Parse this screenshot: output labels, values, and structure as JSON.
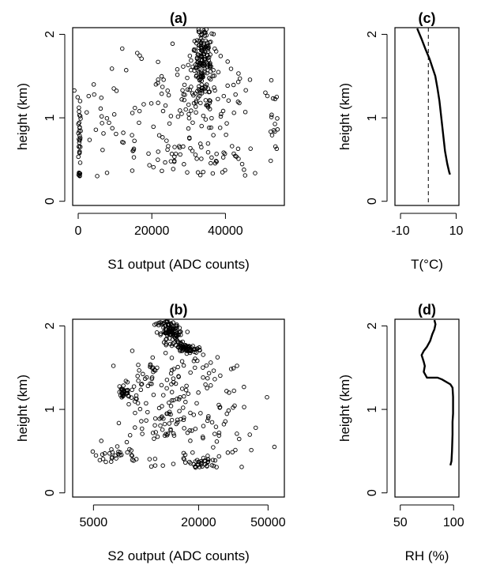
{
  "chart_data": [
    {
      "id": "a",
      "type": "scatter",
      "title": "(a)",
      "xlabel": "S1 output (ADC counts)",
      "ylabel": "height (km)",
      "xscale": "linear",
      "xlim": [
        -1500,
        56000
      ],
      "ylim": [
        -0.05,
        2.08
      ],
      "xticks": [
        0,
        20000,
        40000
      ],
      "xtick_labels": [
        "0",
        "20000",
        "40000"
      ],
      "yticks": [
        0,
        1,
        2
      ],
      "ytick_labels": [
        "0",
        "1",
        "2"
      ],
      "series": [
        {
          "marker": "open-circle",
          "clusters": [
            {
              "x": [
                34000,
                1500
              ],
              "y": [
                1.75,
                0.3
              ],
              "n": 200
            },
            {
              "x": [
                31000,
                9000
              ],
              "y": [
                1.25,
                0.28
              ],
              "n": 110
            },
            {
              "x": [
                30000,
                9000
              ],
              "y": [
                0.55,
                0.15
              ],
              "n": 70
            },
            {
              "x": [
                300,
                180
              ],
              "y": [
                0.75,
                0.3
              ],
              "n": 35
            },
            {
              "x": [
                6000,
                3500
              ],
              "y": [
                0.95,
                0.3
              ],
              "n": 25
            },
            {
              "x": [
                53500,
                600
              ],
              "y": [
                1.0,
                0.35
              ],
              "n": 14
            }
          ]
        }
      ]
    },
    {
      "id": "b",
      "type": "scatter",
      "title": "(b)",
      "xlabel": "S2 output (ADC counts)",
      "ylabel": "height (km)",
      "xscale": "log",
      "xlim": [
        3800,
        62000
      ],
      "ylim": [
        -0.05,
        2.08
      ],
      "xticks": [
        5000,
        20000,
        50000
      ],
      "xtick_labels": [
        "5000",
        "20000",
        "50000"
      ],
      "yticks": [
        0,
        1,
        2
      ],
      "ytick_labels": [
        "0",
        "1",
        "2"
      ],
      "series": [
        {
          "marker": "open-circle",
          "clusters": [
            {
              "trail": [
                [
                  13000,
                  2.07
                ],
                [
                  13500,
                  1.95
                ],
                [
                  14000,
                  1.9
                ],
                [
                  15000,
                  1.8
                ],
                [
                  17000,
                  1.72
                ],
                [
                  19000,
                  1.7
                ]
              ],
              "n": 170,
              "spread": [
                0.03,
                0.02
              ]
            },
            {
              "x": [
                15000,
                0.45
              ],
              "y": [
                1.35,
                0.18
              ],
              "n": 90
            },
            {
              "x": [
                14000,
                0.5
              ],
              "y": [
                0.75,
                0.2
              ],
              "n": 120
            },
            {
              "x": [
                21000,
                0.1
              ],
              "y": [
                0.35,
                0.05
              ],
              "n": 35
            },
            {
              "x": [
                7500,
                0.05
              ],
              "y": [
                1.2,
                0.03
              ],
              "n": 30
            },
            {
              "x": [
                6700,
                0.15
              ],
              "y": [
                0.45,
                0.04
              ],
              "n": 25
            }
          ]
        }
      ]
    },
    {
      "id": "c",
      "type": "line",
      "title": "(c)",
      "xlabel": "T(°C)",
      "ylabel": "height (km)",
      "xlim": [
        -12,
        11
      ],
      "ylim": [
        -0.05,
        2.08
      ],
      "xticks": [
        -10,
        10
      ],
      "xtick_labels": [
        "-10",
        "10"
      ],
      "yticks": [
        0,
        1,
        2
      ],
      "ytick_labels": [
        "0",
        "1",
        "2"
      ],
      "reference_line_x": 0,
      "x": [
        7.8,
        7.5,
        6.8,
        6.0,
        5.5,
        5.0,
        4.5,
        4.0,
        3.3,
        2.5,
        1.5,
        0.5,
        -1.0,
        -2.5,
        -4.0
      ],
      "y": [
        0.32,
        0.35,
        0.45,
        0.6,
        0.75,
        0.9,
        1.05,
        1.2,
        1.35,
        1.5,
        1.6,
        1.7,
        1.82,
        1.95,
        2.07
      ]
    },
    {
      "id": "d",
      "type": "line",
      "title": "(d)",
      "xlabel": "RH (%)",
      "ylabel": "height (km)",
      "xlim": [
        45,
        105
      ],
      "ylim": [
        -0.05,
        2.08
      ],
      "xticks": [
        50,
        100
      ],
      "xtick_labels": [
        "50",
        "100"
      ],
      "yticks": [
        0,
        1,
        2
      ],
      "ytick_labels": [
        "0",
        "1",
        "2"
      ],
      "x": [
        97,
        98,
        98.5,
        99,
        99,
        99.5,
        99.5,
        99,
        97,
        89,
        85,
        75,
        72,
        73,
        72,
        70,
        72,
        75,
        78,
        80,
        82,
        83,
        82
      ],
      "y": [
        0.33,
        0.38,
        0.5,
        0.7,
        0.85,
        0.95,
        1.15,
        1.26,
        1.3,
        1.36,
        1.38,
        1.38,
        1.45,
        1.52,
        1.57,
        1.65,
        1.7,
        1.75,
        1.82,
        1.9,
        1.96,
        2.02,
        2.07
      ]
    }
  ]
}
